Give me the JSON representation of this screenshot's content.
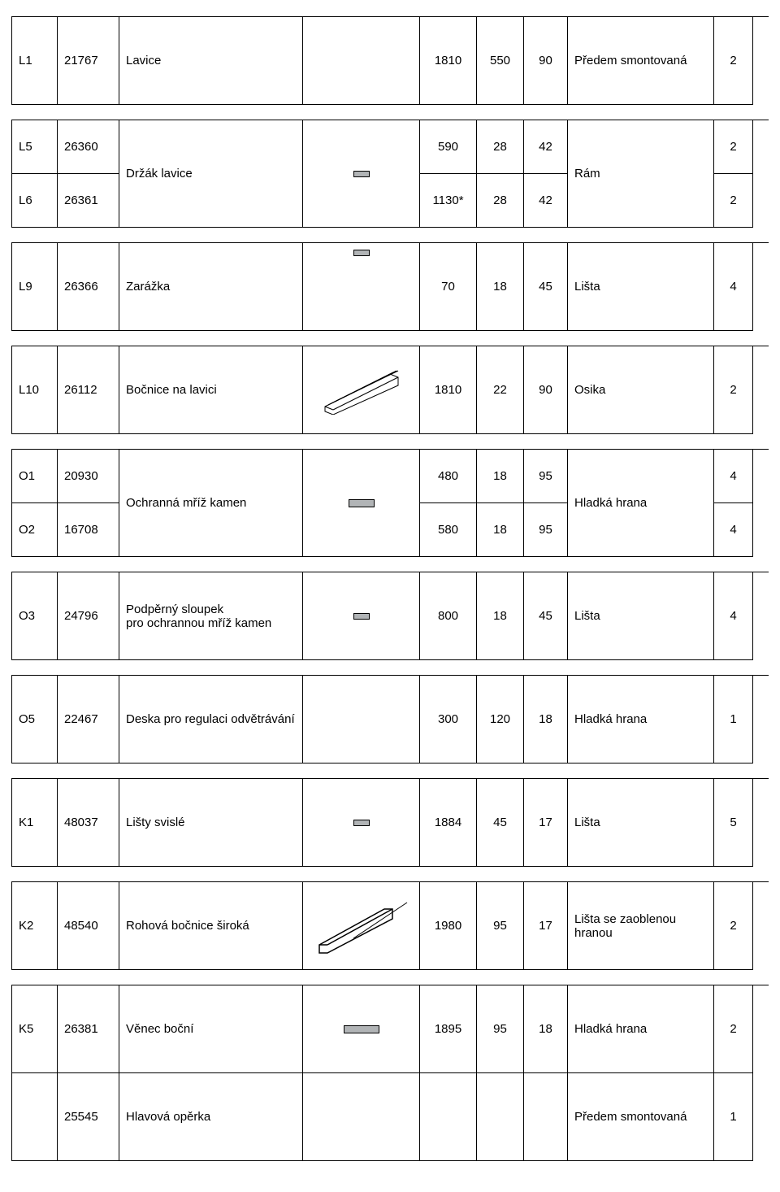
{
  "cols": {
    "code": 56,
    "num": 76,
    "name": 226,
    "ill": 144,
    "d1": 70,
    "d2": 58,
    "d3": 54,
    "note": 180,
    "qty": 48
  },
  "heights": {
    "tall": 108,
    "double": 66,
    "short": 56
  },
  "groups": [
    {
      "rows": [
        {
          "code": "L1",
          "num": "21767",
          "name": "Lavice",
          "ill": "",
          "d1": "1810",
          "d2": "550",
          "d3": "90",
          "note": "Předem smontovaná",
          "qty": "2",
          "h": "tall"
        }
      ]
    },
    {
      "merge": {
        "name": true,
        "ill": true,
        "note": true
      },
      "rows": [
        {
          "code": "L5",
          "num": "26360",
          "name": "Držák lavice",
          "ill": "rect-sm",
          "d1": "590",
          "d2": "28",
          "d3": "42",
          "note": "Rám",
          "qty": "2",
          "h": "double"
        },
        {
          "code": "L6",
          "num": "26361",
          "d1": "1130*",
          "d2": "28",
          "d3": "42",
          "qty": "2",
          "h": "double"
        }
      ]
    },
    {
      "rows": [
        {
          "code": "L9",
          "num": "26366",
          "name": "Zarážka",
          "ill": "rect-sm-top",
          "d1": "70",
          "d2": "18",
          "d3": "45",
          "note": "Lišta",
          "qty": "4",
          "h": "tall"
        }
      ]
    },
    {
      "rows": [
        {
          "code": "L10",
          "num": "26112",
          "name": "Bočnice na lavici",
          "ill": "svg-plank",
          "d1": "1810",
          "d2": "22",
          "d3": "90",
          "note": "Osika",
          "qty": "2",
          "h": "tall"
        }
      ]
    },
    {
      "merge": {
        "name": true,
        "ill": true,
        "note": true
      },
      "rows": [
        {
          "code": "O1",
          "num": "20930",
          "name": "Ochranná mříž kamen",
          "ill": "rect-md",
          "d1": "480",
          "d2": "18",
          "d3": "95",
          "note": "Hladká hrana",
          "qty": "4",
          "h": "double"
        },
        {
          "code": "O2",
          "num": "16708",
          "d1": "580",
          "d2": "18",
          "d3": "95",
          "qty": "4",
          "h": "double"
        }
      ]
    },
    {
      "rows": [
        {
          "code": "O3",
          "num": "24796",
          "name": "Podpěrný sloupek\npro ochrannou mříž kamen",
          "ill": "rect-sm",
          "d1": "800",
          "d2": "18",
          "d3": "45",
          "note": "Lišta",
          "qty": "4",
          "h": "tall"
        }
      ]
    },
    {
      "rows": [
        {
          "code": "O5",
          "num": "22467",
          "name": "Deska pro regulaci odvětrávání",
          "ill": "",
          "d1": "300",
          "d2": "120",
          "d3": "18",
          "note": "Hladká hrana",
          "qty": "1",
          "h": "tall"
        }
      ]
    },
    {
      "rows": [
        {
          "code": "K1",
          "num": "48037",
          "name": "Lišty svislé",
          "ill": "rect-sm",
          "d1": "1884",
          "d2": "45",
          "d3": "17",
          "note": "Lišta",
          "qty": "5",
          "h": "tall"
        }
      ]
    },
    {
      "rows": [
        {
          "code": "K2",
          "num": "48540",
          "name": "Rohová bočnice široká",
          "ill": "svg-board",
          "d1": "1980",
          "d2": "95",
          "d3": "17",
          "note": "Lišta se zaoblenou hranou",
          "qty": "2",
          "h": "tall"
        }
      ]
    }
  ],
  "tail": {
    "rows": [
      {
        "code": "K5",
        "num": "26381",
        "name": "Věnec boční",
        "ill": "rect-lg",
        "d1": "1895",
        "d2": "95",
        "d3": "18",
        "note": "Hladká hrana",
        "qty": "2",
        "h": "tall"
      },
      {
        "code": "",
        "num": "25545",
        "name": "Hlavová opěrka",
        "ill": "",
        "d1": "",
        "d2": "",
        "d3": "",
        "note": "Předem smontovaná",
        "qty": "1",
        "h": "tall"
      }
    ]
  }
}
